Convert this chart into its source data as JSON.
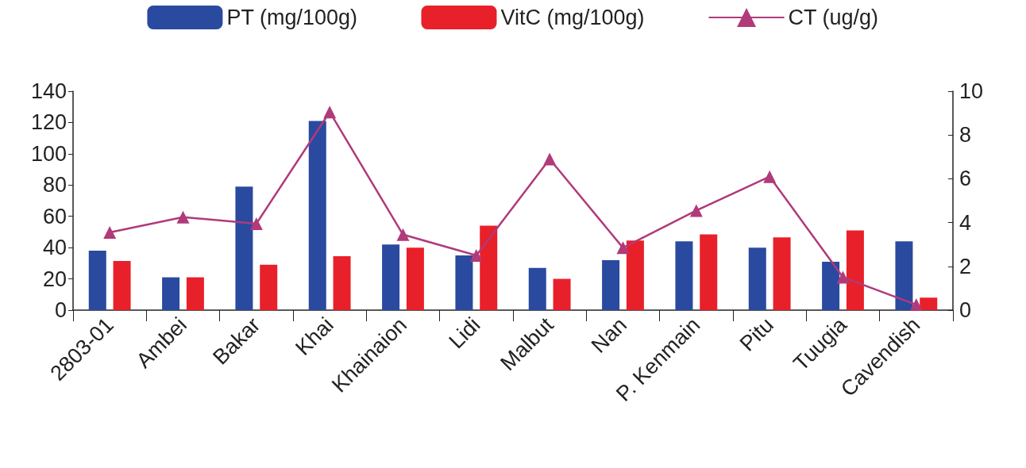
{
  "chart_data": {
    "type": "bar",
    "categories": [
      "2803-01",
      "Ambei",
      "Bakar",
      "Khai",
      "Khainaion",
      "Lidi",
      "Malbut",
      "Nan",
      "P. Kenmain",
      "Pitu",
      "Tuugia",
      "Cavendish"
    ],
    "series": [
      {
        "name": "PT (mg/100g)",
        "color": "#2a4aa0",
        "values": [
          38,
          21,
          79,
          121,
          42,
          35,
          27,
          32,
          44,
          40,
          31,
          44
        ]
      },
      {
        "name": "VitC (mg/100g)",
        "color": "#e8202a",
        "values": [
          31.5,
          21,
          29,
          34.5,
          40,
          54,
          20,
          44.5,
          48.5,
          46.5,
          51,
          8
        ]
      },
      {
        "name": "CT (ug/g)",
        "type": "line",
        "axis": "y2",
        "color": "#b03a7a",
        "marker": "triangle",
        "values": [
          3.55,
          4.25,
          3.95,
          9.05,
          3.45,
          2.5,
          6.9,
          2.85,
          4.55,
          6.1,
          1.5,
          0.25
        ]
      }
    ],
    "ylim": [
      0,
      140
    ],
    "yticks": [
      0,
      20,
      40,
      60,
      80,
      100,
      120,
      140
    ],
    "y2lim": [
      0,
      10
    ],
    "y2ticks": [
      0,
      2,
      4,
      6,
      8,
      10
    ],
    "grid": false,
    "legend": "top"
  }
}
